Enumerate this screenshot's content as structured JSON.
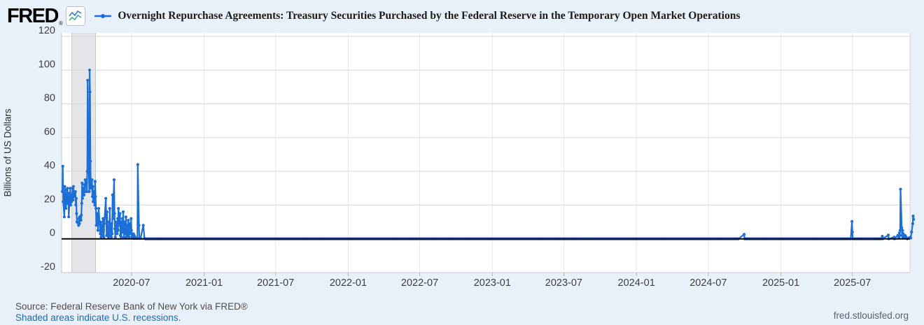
{
  "header": {
    "logo_text": "FRED",
    "logo_reg": "®",
    "title": "Overnight Repurchase Agreements: Treasury Securities Purchased by the Federal Reserve in the Temporary Open Market Operations"
  },
  "footer": {
    "source_line": "Source: Federal Reserve Bank of New York via FRED®",
    "recession_note": "Shaded areas indicate U.S. recessions.",
    "site": "fred.stlouisfed.org"
  },
  "colors": {
    "background": "#e8f0f9",
    "plot_background": "#ffffff",
    "grid": "#d6d6d6",
    "vgrid": "#e7e9ec",
    "axis_line": "#c4c7cc",
    "tick_mark": "#b0b6bf",
    "tick_text": "#3f3f3f",
    "recession_band": "#e4e5e8",
    "recession_band_edge": "#c6c7cb",
    "series": "#1d6fd8",
    "zero_line": "#000000",
    "link": "#2268b0",
    "source_text": "#4d4d4d",
    "site_text": "#57606e"
  },
  "chart_data": {
    "type": "line",
    "title": "Overnight Repurchase Agreements: Treasury Securities Purchased by the Federal Reserve in the Temporary Open Market Operations",
    "xlabel": "",
    "ylabel": "Billions of US Dollars",
    "ylim": [
      -20,
      120
    ],
    "yticks": [
      120,
      100,
      80,
      60,
      40,
      20,
      0,
      -20
    ],
    "xticks": [
      "2020-07",
      "2021-01",
      "2021-07",
      "2022-01",
      "2022-07",
      "2023-01",
      "2023-07",
      "2024-01",
      "2024-07",
      "2025-01",
      "2025-07"
    ],
    "x_range": [
      "2020-01-06",
      "2025-11-24"
    ],
    "grid": true,
    "legend_position": "top",
    "frequency": "daily",
    "recession_bands": [
      {
        "start": "2020-02-01",
        "end": "2020-04-01"
      }
    ],
    "series": [
      {
        "name": "Overnight Repurchase Agreements: Treasury Securities Purchased by the Federal Reserve in the Temporary Open Market Operations",
        "units": "Billions of US Dollars",
        "color": "#1d6fd8",
        "points": [
          [
            "2020-01-08",
            28
          ],
          [
            "2020-01-09",
            43
          ],
          [
            "2020-01-10",
            22
          ],
          [
            "2020-01-13",
            13
          ],
          [
            "2020-01-14",
            31
          ],
          [
            "2020-01-15",
            24
          ],
          [
            "2020-01-16",
            29
          ],
          [
            "2020-01-17",
            18
          ],
          [
            "2020-01-21",
            30
          ],
          [
            "2020-01-22",
            21
          ],
          [
            "2020-01-23",
            27
          ],
          [
            "2020-01-24",
            13
          ],
          [
            "2020-01-27",
            25
          ],
          [
            "2020-01-28",
            30
          ],
          [
            "2020-01-29",
            20
          ],
          [
            "2020-01-30",
            26
          ],
          [
            "2020-01-31",
            22
          ],
          [
            "2020-02-03",
            30
          ],
          [
            "2020-02-04",
            23
          ],
          [
            "2020-02-05",
            31
          ],
          [
            "2020-02-06",
            25
          ],
          [
            "2020-02-07",
            27
          ],
          [
            "2020-02-10",
            28
          ],
          [
            "2020-02-11",
            20
          ],
          [
            "2020-02-12",
            24
          ],
          [
            "2020-02-13",
            15
          ],
          [
            "2020-02-14",
            10
          ],
          [
            "2020-02-18",
            8
          ],
          [
            "2020-02-19",
            12
          ],
          [
            "2020-02-20",
            9
          ],
          [
            "2020-02-21",
            13
          ],
          [
            "2020-02-24",
            11
          ],
          [
            "2020-02-25",
            14
          ],
          [
            "2020-02-26",
            21
          ],
          [
            "2020-02-27",
            33
          ],
          [
            "2020-02-28",
            24
          ],
          [
            "2020-03-02",
            30
          ],
          [
            "2020-03-03",
            26
          ],
          [
            "2020-03-04",
            32
          ],
          [
            "2020-03-05",
            28
          ],
          [
            "2020-03-06",
            35
          ],
          [
            "2020-03-09",
            33
          ],
          [
            "2020-03-10",
            28
          ],
          [
            "2020-03-11",
            40
          ],
          [
            "2020-03-12",
            94
          ],
          [
            "2020-03-13",
            62
          ],
          [
            "2020-03-16",
            28
          ],
          [
            "2020-03-17",
            100
          ],
          [
            "2020-03-18",
            87
          ],
          [
            "2020-03-19",
            46
          ],
          [
            "2020-03-20",
            30
          ],
          [
            "2020-03-23",
            35
          ],
          [
            "2020-03-24",
            25
          ],
          [
            "2020-03-25",
            31
          ],
          [
            "2020-03-26",
            22
          ],
          [
            "2020-03-27",
            28
          ],
          [
            "2020-03-30",
            20
          ],
          [
            "2020-03-31",
            34
          ],
          [
            "2020-04-01",
            25
          ],
          [
            "2020-04-02",
            18
          ],
          [
            "2020-04-03",
            8
          ],
          [
            "2020-04-06",
            15
          ],
          [
            "2020-04-07",
            5
          ],
          [
            "2020-04-08",
            12
          ],
          [
            "2020-04-09",
            18
          ],
          [
            "2020-04-13",
            3
          ],
          [
            "2020-04-14",
            10
          ],
          [
            "2020-04-15",
            1
          ],
          [
            "2020-04-16",
            8
          ],
          [
            "2020-04-17",
            2
          ],
          [
            "2020-04-20",
            12
          ],
          [
            "2020-04-21",
            5
          ],
          [
            "2020-04-22",
            1
          ],
          [
            "2020-04-23",
            9
          ],
          [
            "2020-04-27",
            24
          ],
          [
            "2020-04-28",
            13
          ],
          [
            "2020-04-29",
            2
          ],
          [
            "2020-04-30",
            16
          ],
          [
            "2020-05-01",
            6
          ],
          [
            "2020-05-04",
            1
          ],
          [
            "2020-05-05",
            10
          ],
          [
            "2020-05-06",
            2
          ],
          [
            "2020-05-07",
            18
          ],
          [
            "2020-05-08",
            8
          ],
          [
            "2020-05-11",
            1
          ],
          [
            "2020-05-12",
            9
          ],
          [
            "2020-05-13",
            3
          ],
          [
            "2020-05-14",
            26
          ],
          [
            "2020-05-15",
            12
          ],
          [
            "2020-05-18",
            35
          ],
          [
            "2020-05-19",
            15
          ],
          [
            "2020-05-20",
            6
          ],
          [
            "2020-05-21",
            1
          ],
          [
            "2020-05-22",
            10
          ],
          [
            "2020-05-26",
            3
          ],
          [
            "2020-05-27",
            12
          ],
          [
            "2020-05-28",
            5
          ],
          [
            "2020-05-29",
            18
          ],
          [
            "2020-06-01",
            8
          ],
          [
            "2020-06-02",
            15
          ],
          [
            "2020-06-03",
            2
          ],
          [
            "2020-06-04",
            10
          ],
          [
            "2020-06-05",
            1
          ],
          [
            "2020-06-08",
            12
          ],
          [
            "2020-06-09",
            4
          ],
          [
            "2020-06-10",
            16
          ],
          [
            "2020-06-11",
            7
          ],
          [
            "2020-06-12",
            1
          ],
          [
            "2020-06-15",
            10
          ],
          [
            "2020-06-16",
            3
          ],
          [
            "2020-06-17",
            13
          ],
          [
            "2020-06-18",
            1
          ],
          [
            "2020-06-19",
            8
          ],
          [
            "2020-06-22",
            2
          ],
          [
            "2020-06-23",
            11
          ],
          [
            "2020-06-24",
            4
          ],
          [
            "2020-06-25",
            1
          ],
          [
            "2020-06-26",
            9
          ],
          [
            "2020-06-29",
            3
          ],
          [
            "2020-06-30",
            12
          ],
          [
            "2020-07-01",
            5
          ],
          [
            "2020-07-02",
            1
          ],
          [
            "2020-07-06",
            3
          ],
          [
            "2020-07-07",
            0.3
          ],
          [
            "2020-07-08",
            2
          ],
          [
            "2020-07-09",
            0.3
          ],
          [
            "2020-07-10",
            1
          ],
          [
            "2020-07-13",
            0.3
          ],
          [
            "2020-07-16",
            0.3
          ],
          [
            "2020-07-17",
            44
          ],
          [
            "2020-07-20",
            8
          ],
          [
            "2020-07-21",
            0.3
          ],
          [
            "2020-07-24",
            0.3
          ],
          [
            "2020-07-31",
            8
          ],
          [
            "2020-08-03",
            0.3
          ],
          [
            "2020-09-15",
            0.001
          ],
          [
            "2020-11-01",
            0.001
          ],
          [
            "2020-12-15",
            0.001
          ],
          [
            "2021-02-01",
            0.001
          ],
          [
            "2021-03-15",
            0.001
          ],
          [
            "2021-05-01",
            0.001
          ],
          [
            "2021-06-15",
            0.001
          ],
          [
            "2021-08-01",
            0.001
          ],
          [
            "2021-09-15",
            0.001
          ],
          [
            "2021-11-01",
            0.001
          ],
          [
            "2021-12-15",
            0.001
          ],
          [
            "2022-02-01",
            0.001
          ],
          [
            "2022-03-15",
            0.001
          ],
          [
            "2022-05-01",
            0.001
          ],
          [
            "2022-06-15",
            0.001
          ],
          [
            "2022-08-01",
            0.001
          ],
          [
            "2022-09-15",
            0.001
          ],
          [
            "2022-11-01",
            0.001
          ],
          [
            "2022-12-15",
            0.001
          ],
          [
            "2023-02-01",
            0.001
          ],
          [
            "2023-03-15",
            0.001
          ],
          [
            "2023-05-01",
            0.001
          ],
          [
            "2023-06-15",
            0.001
          ],
          [
            "2023-08-01",
            0.001
          ],
          [
            "2023-09-15",
            0.001
          ],
          [
            "2023-11-01",
            0.001
          ],
          [
            "2023-12-15",
            0.001
          ],
          [
            "2024-02-01",
            0.001
          ],
          [
            "2024-03-15",
            0.001
          ],
          [
            "2024-05-01",
            0.001
          ],
          [
            "2024-06-15",
            0.001
          ],
          [
            "2024-08-01",
            0.001
          ],
          [
            "2024-09-15",
            0.001
          ],
          [
            "2024-09-30",
            2.6
          ],
          [
            "2024-10-01",
            0.001
          ],
          [
            "2024-11-15",
            0.001
          ],
          [
            "2024-12-31",
            0.001
          ],
          [
            "2025-02-15",
            0.001
          ],
          [
            "2025-04-01",
            0.001
          ],
          [
            "2025-05-15",
            0.001
          ],
          [
            "2025-06-27",
            0.001
          ],
          [
            "2025-06-30",
            10.3
          ],
          [
            "2025-07-01",
            4
          ],
          [
            "2025-07-02",
            0.001
          ],
          [
            "2025-08-15",
            0.001
          ],
          [
            "2025-09-12",
            0.001
          ],
          [
            "2025-09-15",
            1.5
          ],
          [
            "2025-09-16",
            0.001
          ],
          [
            "2025-09-30",
            2.2
          ],
          [
            "2025-10-01",
            0.001
          ],
          [
            "2025-10-15",
            1
          ],
          [
            "2025-10-16",
            0.001
          ],
          [
            "2025-10-24",
            2
          ],
          [
            "2025-10-27",
            0.5
          ],
          [
            "2025-10-28",
            3.5
          ],
          [
            "2025-10-29",
            2
          ],
          [
            "2025-10-30",
            5
          ],
          [
            "2025-10-31",
            29.4
          ],
          [
            "2025-11-03",
            6.5
          ],
          [
            "2025-11-04",
            2
          ],
          [
            "2025-11-05",
            5
          ],
          [
            "2025-11-06",
            1
          ],
          [
            "2025-11-07",
            3
          ],
          [
            "2025-11-10",
            0.5
          ],
          [
            "2025-11-12",
            2
          ],
          [
            "2025-11-13",
            0.5
          ],
          [
            "2025-11-14",
            1
          ],
          [
            "2025-11-17",
            0.001
          ],
          [
            "2025-11-21",
            0.5
          ],
          [
            "2025-11-25",
            1
          ],
          [
            "2025-11-26",
            0.5
          ],
          [
            "2025-11-28",
            4
          ],
          [
            "2025-12-01",
            9
          ],
          [
            "2025-12-02",
            13.5
          ],
          [
            "2025-12-03",
            11.5
          ]
        ]
      }
    ]
  }
}
